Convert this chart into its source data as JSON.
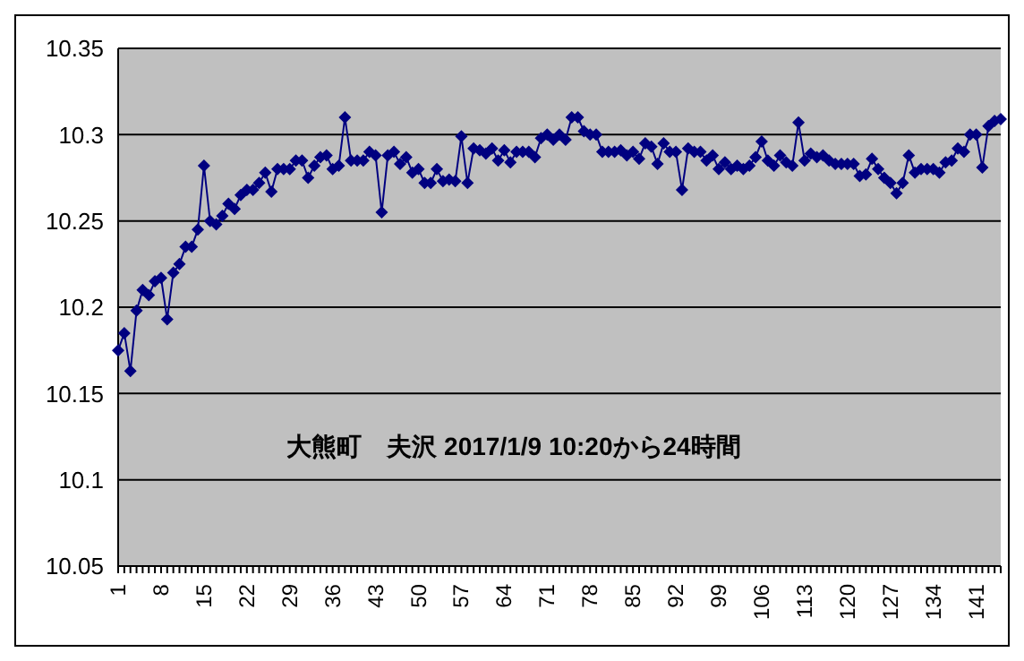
{
  "chart_data": {
    "type": "line",
    "title": "大熊町　夫沢  2017/1/9 10:20から24時間",
    "categories": [
      "1",
      null,
      null,
      null,
      null,
      null,
      null,
      "8",
      null,
      null,
      null,
      null,
      null,
      null,
      "15",
      null,
      null,
      null,
      null,
      null,
      null,
      "22",
      null,
      null,
      null,
      null,
      null,
      null,
      "29",
      null,
      null,
      null,
      null,
      null,
      null,
      "36",
      null,
      null,
      null,
      null,
      null,
      null,
      "43",
      null,
      null,
      null,
      null,
      null,
      null,
      "50",
      null,
      null,
      null,
      null,
      null,
      null,
      "57",
      null,
      null,
      null,
      null,
      null,
      null,
      "64",
      null,
      null,
      null,
      null,
      null,
      null,
      "71",
      null,
      null,
      null,
      null,
      null,
      null,
      "78",
      null,
      null,
      null,
      null,
      null,
      null,
      "85",
      null,
      null,
      null,
      null,
      null,
      null,
      "92",
      null,
      null,
      null,
      null,
      null,
      null,
      "99",
      null,
      null,
      null,
      null,
      null,
      null,
      "106",
      null,
      null,
      null,
      null,
      null,
      null,
      "113",
      null,
      null,
      null,
      null,
      null,
      null,
      "120",
      null,
      null,
      null,
      null,
      null,
      null,
      "127",
      null,
      null,
      null,
      null,
      null,
      null,
      "134",
      null,
      null,
      null,
      null,
      null,
      null,
      "141",
      null,
      null,
      null,
      null
    ],
    "series": [
      {
        "color": "#000080",
        "values": [
          10.175,
          10.185,
          10.163,
          10.198,
          10.21,
          10.207,
          10.215,
          10.217,
          10.193,
          10.22,
          10.225,
          10.235,
          10.235,
          10.245,
          10.282,
          10.25,
          10.248,
          10.253,
          10.26,
          10.257,
          10.265,
          10.268,
          10.268,
          10.272,
          10.278,
          10.267,
          10.28,
          10.28,
          10.28,
          10.285,
          10.285,
          10.275,
          10.282,
          10.287,
          10.288,
          10.28,
          10.282,
          10.31,
          10.285,
          10.285,
          10.285,
          10.29,
          10.288,
          10.255,
          10.288,
          10.29,
          10.283,
          10.287,
          10.278,
          10.28,
          10.272,
          10.272,
          10.28,
          10.273,
          10.274,
          10.273,
          10.299,
          10.272,
          10.292,
          10.291,
          10.289,
          10.292,
          10.285,
          10.291,
          10.284,
          10.29,
          10.29,
          10.29,
          10.287,
          10.298,
          10.3,
          10.297,
          10.3,
          10.297,
          10.31,
          10.31,
          10.302,
          10.3,
          10.3,
          10.29,
          10.29,
          10.29,
          10.291,
          10.288,
          10.29,
          10.286,
          10.295,
          10.293,
          10.283,
          10.295,
          10.29,
          10.29,
          10.268,
          10.292,
          10.29,
          10.29,
          10.285,
          10.288,
          10.28,
          10.284,
          10.28,
          10.282,
          10.28,
          10.282,
          10.287,
          10.296,
          10.285,
          10.282,
          10.288,
          10.284,
          10.282,
          10.307,
          10.285,
          10.289,
          10.287,
          10.288,
          10.285,
          10.283,
          10.283,
          10.283,
          10.283,
          10.276,
          10.277,
          10.286,
          10.28,
          10.275,
          10.272,
          10.266,
          10.272,
          10.288,
          10.278,
          10.28,
          10.28,
          10.28,
          10.278,
          10.284,
          10.285,
          10.292,
          10.29,
          10.3,
          10.3,
          10.281,
          10.305,
          10.308,
          10.309
        ]
      }
    ],
    "ylim": [
      10.05,
      10.35
    ],
    "yticks": [
      10.05,
      10.1,
      10.15,
      10.2,
      10.25,
      10.3,
      10.35
    ],
    "grid": "y",
    "marker": "diamond"
  }
}
